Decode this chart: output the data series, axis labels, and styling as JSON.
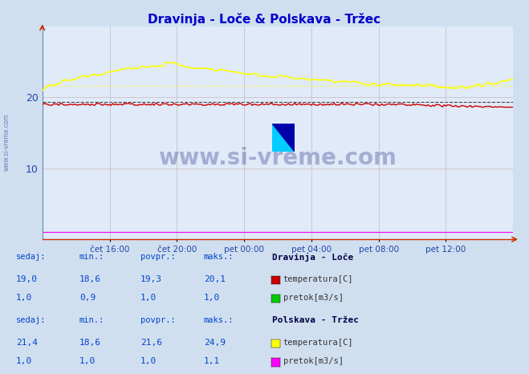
{
  "title": "Dravinja - Loče & Polskava - Tržec",
  "title_color": "#0000cc",
  "bg_color": "#d0dff0",
  "plot_bg_color": "#e0eaf8",
  "ylim": [
    0,
    30
  ],
  "yticks": [
    10,
    20
  ],
  "x_tick_labels": [
    "čet 16:00",
    "čet 20:00",
    "pet 00:00",
    "pet 04:00",
    "pet 08:00",
    "pet 12:00"
  ],
  "n_points": 288,
  "dravinja_temp_avg": 19.3,
  "polskava_temp_avg": 21.6,
  "color_dravinja_temp": "#cc0000",
  "color_dravinja_pretok": "#00cc00",
  "color_polskava_temp": "#ffff00",
  "color_polskava_pretok": "#ff00ff",
  "color_dravinja_temp_dash": "#888888",
  "watermark": "www.si-vreme.com",
  "watermark_color": "#1a237e",
  "left_label": "www.si-vreme.com",
  "stats": {
    "dravinja": {
      "label": "Dravinja - Loče",
      "temp": {
        "sedaj": "19,0",
        "min": "18,6",
        "povpr": "19,3",
        "maks": "20,1"
      },
      "pretok": {
        "sedaj": "1,0",
        "min": "0,9",
        "povpr": "1,0",
        "maks": "1,0"
      },
      "color_temp": "#cc0000",
      "color_pretok": "#00cc00"
    },
    "polskava": {
      "label": "Polskava - Tržec",
      "temp": {
        "sedaj": "21,4",
        "min": "18,6",
        "povpr": "21,6",
        "maks": "24,9"
      },
      "pretok": {
        "sedaj": "1,0",
        "min": "1,0",
        "povpr": "1,0",
        "maks": "1,1"
      },
      "color_temp": "#ffff00",
      "color_pretok": "#ff00ff"
    }
  }
}
